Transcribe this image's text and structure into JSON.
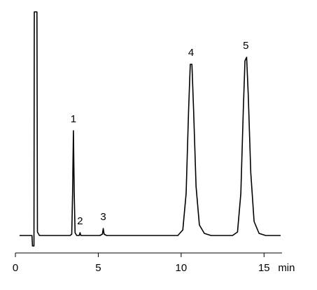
{
  "chart_data": {
    "type": "line",
    "color": "#000000",
    "x": [
      0.25,
      1.0,
      1.03,
      1.12,
      1.14,
      1.3,
      1.33,
      1.45,
      1.7,
      3.3,
      3.4,
      3.45,
      3.5,
      3.55,
      3.6,
      3.7,
      3.85,
      3.9,
      3.95,
      4.1,
      5.1,
      5.25,
      5.3,
      5.35,
      5.5,
      9.8,
      10.1,
      10.3,
      10.45,
      10.55,
      10.65,
      10.75,
      10.9,
      11.1,
      11.4,
      11.8,
      13.1,
      13.4,
      13.6,
      13.75,
      13.85,
      13.95,
      14.05,
      14.2,
      14.4,
      14.7,
      15.1,
      16
    ],
    "values": [
      0,
      0,
      -15,
      -15,
      320,
      320,
      5,
      0,
      0,
      0,
      2,
      60,
      150,
      60,
      4,
      0,
      0,
      4,
      0,
      0,
      0,
      2,
      10,
      2,
      0,
      0,
      8,
      60,
      180,
      245,
      245,
      180,
      70,
      15,
      3,
      0,
      0,
      5,
      60,
      180,
      250,
      255,
      200,
      90,
      20,
      3,
      0,
      0
    ],
    "xlim": [
      0,
      16
    ],
    "ylim": [
      -25,
      320
    ],
    "xticks": [
      0,
      5,
      10,
      15
    ],
    "xlabel": "min",
    "annotations": [
      {
        "text": "1",
        "x": 3.5
      },
      {
        "text": "2",
        "x": 3.9
      },
      {
        "text": "3",
        "x": 5.3
      },
      {
        "text": "4",
        "x": 10.6
      },
      {
        "text": "5",
        "x": 13.9
      }
    ]
  }
}
